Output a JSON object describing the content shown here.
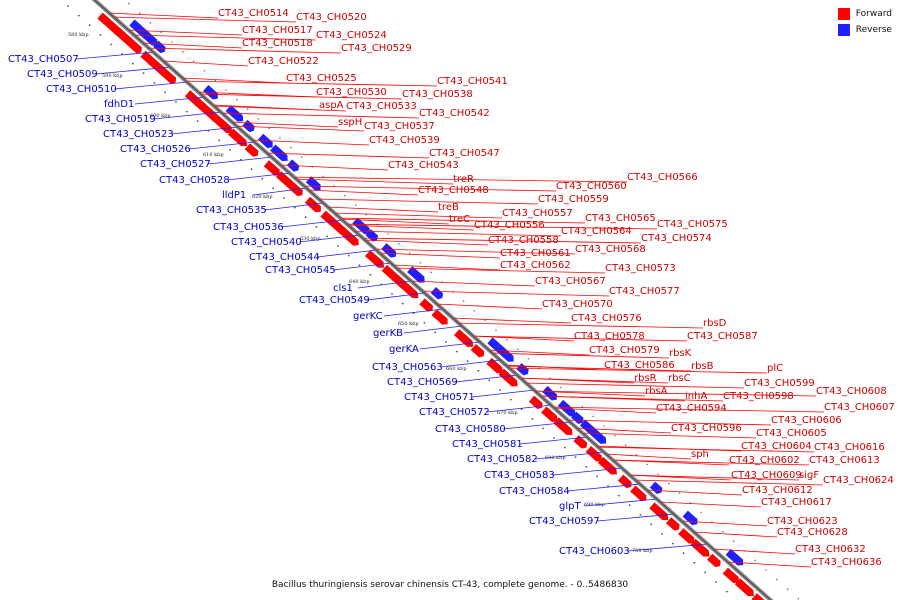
{
  "legend": {
    "forward_label": "Forward",
    "reverse_label": "Reverse",
    "forward_color": "#ff0000",
    "reverse_color": "#1f1fff"
  },
  "caption": "Bacillus thuringiensis serovar chinensis CT-43, complete genome. - 0..5486830",
  "ticks": [
    "580 kbp",
    "590 kbp",
    "600 kbp",
    "610 kbp",
    "620 kbp",
    "630 kbp",
    "640 kbp",
    "650 kbp",
    "660 kbp",
    "670 kbp",
    "680 kbp",
    "690 kbp",
    "700 kbp"
  ],
  "genes": {
    "forward": [
      "CT43_CH0514",
      "CT43_CH0520",
      "CT43_CH0517",
      "CT43_CH0524",
      "CT43_CH0518",
      "CT43_CH0529",
      "CT43_CH0522",
      "CT43_CH0525",
      "CT43_CH0541",
      "CT43_CH0530",
      "CT43_CH0538",
      "aspA",
      "CT43_CH0533",
      "CT43_CH0542",
      "sspH",
      "CT43_CH0537",
      "CT43_CH0539",
      "CT43_CH0547",
      "CT43_CH0543",
      "treR",
      "CT43_CH0548",
      "CT43_CH0566",
      "CT43_CH0560",
      "CT43_CH0559",
      "treB",
      "CT43_CH0557",
      "CT43_CH0565",
      "treC",
      "CT43_CH0556",
      "CT43_CH0564",
      "CT43_CH0575",
      "CT43_CH0558",
      "CT43_CH0574",
      "CT43_CH0568",
      "CT43_CH0561",
      "CT43_CH0562",
      "CT43_CH0573",
      "CT43_CH0567",
      "CT43_CH0577",
      "CT43_CH0570",
      "CT43_CH0576",
      "rbsD",
      "CT43_CH0578",
      "CT43_CH0587",
      "CT43_CH0579",
      "rbsK",
      "CT43_CH0586",
      "rbsB",
      "rbsR",
      "rbsC",
      "plC",
      "rbsA",
      "CT43_CH0599",
      "inhA",
      "CT43_CH0598",
      "CT43_CH0608",
      "CT43_CH0594",
      "CT43_CH0607",
      "CT43_CH0606",
      "CT43_CH0596",
      "CT43_CH0605",
      "CT43_CH0604",
      "CT43_CH0616",
      "sph",
      "CT43_CH0602",
      "CT43_CH0613",
      "CT43_CH0609",
      "sigF",
      "CT43_CH0624",
      "CT43_CH0612",
      "CT43_CH0617",
      "CT43_CH0623",
      "CT43_CH0628",
      "CT43_CH0632",
      "CT43_CH0636"
    ],
    "reverse": [
      "CT43_CH0507",
      "CT43_CH0509",
      "CT43_CH0510",
      "fdhD1",
      "CT43_CH0519",
      "CT43_CH0523",
      "CT43_CH0526",
      "CT43_CH0527",
      "CT43_CH0528",
      "lldP1",
      "CT43_CH0535",
      "CT43_CH0536",
      "CT43_CH0540",
      "CT43_CH0544",
      "CT43_CH0545",
      "cls1",
      "CT43_CH0549",
      "gerKC",
      "gerKB",
      "gerKA",
      "CT43_CH0563",
      "CT43_CH0569",
      "CT43_CH0571",
      "CT43_CH0572",
      "CT43_CH0580",
      "CT43_CH0581",
      "CT43_CH0582",
      "CT43_CH0583",
      "CT43_CH0584",
      "glpT",
      "CT43_CH0597",
      "CT43_CH0603"
    ]
  }
}
